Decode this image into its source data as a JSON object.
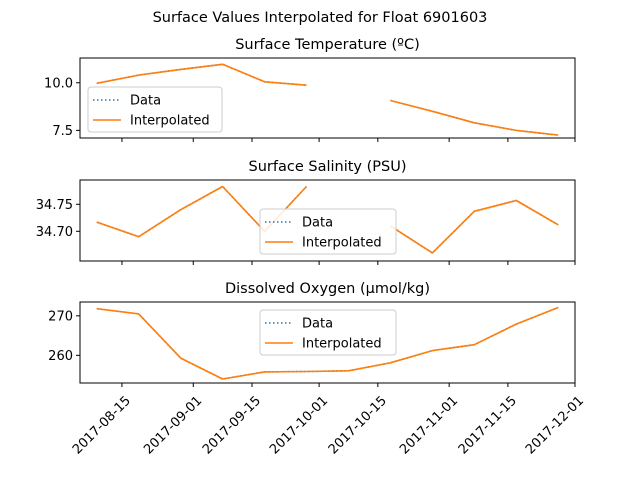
{
  "figure": {
    "suptitle": "Surface Values Interpolated for Float 6901603"
  },
  "colors": {
    "data_line": "#1f77b4",
    "interp_line": "#ff7f0e",
    "axes": "#000000",
    "legend_border": "#cccccc"
  },
  "chart_data": [
    {
      "type": "line",
      "title": "Surface Temperature (ºC)",
      "xlabel": "",
      "ylabel": "",
      "ylim": [
        7.1,
        11.3
      ],
      "yticks": [
        7.5,
        10.0
      ],
      "ytick_labels": [
        "7.5",
        "10.0"
      ],
      "legend": {
        "position": "center-left",
        "entries": [
          "Data",
          "Interpolated"
        ]
      },
      "series": [
        {
          "name": "Data",
          "style": "dotted",
          "x": [
            "2017-08-09",
            "2017-08-19",
            "2017-08-29",
            "2017-09-08",
            "2017-09-18",
            "2017-09-28",
            null,
            "2017-10-18",
            "2017-10-28",
            "2017-11-07",
            "2017-11-17",
            "2017-11-27"
          ],
          "values": [
            9.97,
            10.4,
            10.7,
            10.97,
            10.05,
            9.87,
            null,
            9.07,
            8.5,
            7.9,
            7.5,
            7.25
          ]
        },
        {
          "name": "Interpolated",
          "style": "solid",
          "x": [
            "2017-08-09",
            "2017-08-19",
            "2017-08-29",
            "2017-09-08",
            "2017-09-18",
            "2017-09-28",
            null,
            "2017-10-18",
            "2017-10-28",
            "2017-11-07",
            "2017-11-17",
            "2017-11-27"
          ],
          "values": [
            9.97,
            10.4,
            10.7,
            10.97,
            10.05,
            9.87,
            null,
            9.07,
            8.5,
            7.9,
            7.5,
            7.25
          ]
        }
      ]
    },
    {
      "type": "line",
      "title": "Surface Salinity (PSU)",
      "xlabel": "",
      "ylabel": "",
      "ylim": [
        34.645,
        34.795
      ],
      "yticks": [
        34.7,
        34.75
      ],
      "ytick_labels": [
        "34.70",
        "34.75"
      ],
      "legend": {
        "position": "lower-center",
        "entries": [
          "Data",
          "Interpolated"
        ]
      },
      "series": [
        {
          "name": "Data",
          "style": "dotted",
          "x": [
            "2017-08-09",
            "2017-08-19",
            "2017-08-29",
            "2017-09-08",
            "2017-09-18",
            "2017-09-28",
            null,
            "2017-10-18",
            "2017-10-28",
            "2017-11-07",
            "2017-11-17",
            "2017-11-27"
          ],
          "values": [
            34.717,
            34.69,
            34.74,
            34.783,
            34.7,
            34.783,
            null,
            34.71,
            34.66,
            34.737,
            34.757,
            34.712
          ]
        },
        {
          "name": "Interpolated",
          "style": "solid",
          "x": [
            "2017-08-09",
            "2017-08-19",
            "2017-08-29",
            "2017-09-08",
            "2017-09-18",
            "2017-09-28",
            null,
            "2017-10-18",
            "2017-10-28",
            "2017-11-07",
            "2017-11-17",
            "2017-11-27"
          ],
          "values": [
            34.717,
            34.69,
            34.74,
            34.783,
            34.7,
            34.783,
            null,
            34.71,
            34.66,
            34.737,
            34.757,
            34.712
          ]
        }
      ]
    },
    {
      "type": "line",
      "title": "Dissolved Oxygen (µmol/kg)",
      "xlabel": "",
      "ylabel": "",
      "ylim": [
        253.0,
        273.5
      ],
      "yticks": [
        260,
        270
      ],
      "ytick_labels": [
        "260",
        "270"
      ],
      "legend": {
        "position": "upper-center",
        "entries": [
          "Data",
          "Interpolated"
        ]
      },
      "series": [
        {
          "name": "Data",
          "style": "dotted",
          "x": [
            "2017-08-09",
            "2017-08-19",
            "2017-08-29",
            "2017-09-08",
            "2017-09-18",
            "2017-09-28",
            "2017-10-08",
            "2017-10-18",
            "2017-10-28",
            "2017-11-07",
            "2017-11-17",
            "2017-11-27"
          ],
          "values": [
            271.8,
            270.5,
            259.3,
            254.0,
            255.8,
            255.9,
            256.1,
            258.1,
            261.2,
            262.7,
            267.9,
            272.1
          ]
        },
        {
          "name": "Interpolated",
          "style": "solid",
          "x": [
            "2017-08-09",
            "2017-08-19",
            "2017-08-29",
            "2017-09-08",
            "2017-09-18",
            "2017-09-28",
            "2017-10-08",
            "2017-10-18",
            "2017-10-28",
            "2017-11-07",
            "2017-11-17",
            "2017-11-27"
          ],
          "values": [
            271.8,
            270.5,
            259.3,
            254.0,
            255.8,
            255.9,
            256.1,
            258.1,
            261.2,
            262.7,
            267.9,
            272.1
          ]
        }
      ]
    }
  ],
  "x_axis": {
    "xlim": [
      "2017-08-05",
      "2017-12-01"
    ],
    "ticks": [
      "2017-08-15",
      "2017-09-01",
      "2017-09-15",
      "2017-10-01",
      "2017-10-15",
      "2017-11-01",
      "2017-11-15",
      "2017-12-01"
    ],
    "tick_labels": [
      "2017-08-15",
      "2017-09-01",
      "2017-09-15",
      "2017-10-01",
      "2017-10-15",
      "2017-11-01",
      "2017-11-15",
      "2017-12-01"
    ]
  }
}
